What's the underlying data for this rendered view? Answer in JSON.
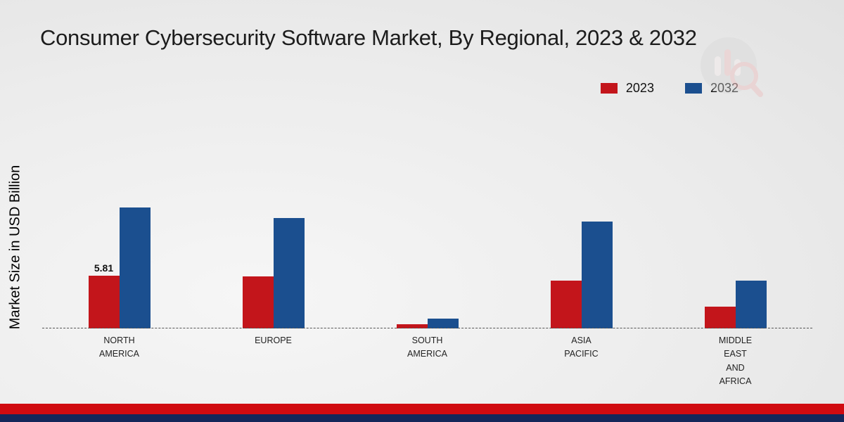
{
  "chart_data": {
    "type": "bar",
    "title": "Consumer Cybersecurity Software Market, By Regional, 2023 & 2032",
    "ylabel": "Market Size in USD Billion",
    "categories": [
      "NORTH\nAMERICA",
      "EUROPE",
      "SOUTH\nAMERICA",
      "ASIA\nPACIFIC",
      "MIDDLE\nEAST\nAND\nAFRICA"
    ],
    "series": [
      {
        "name": "2023",
        "color": "#c3151b",
        "values": [
          5.81,
          5.7,
          0.5,
          5.3,
          2.4
        ],
        "value_labels": [
          "5.81",
          "",
          "",
          "",
          ""
        ]
      },
      {
        "name": "2032",
        "color": "#1b4f8f",
        "values": [
          13.3,
          12.2,
          1.1,
          11.8,
          5.3
        ],
        "value_labels": [
          "",
          "",
          "",
          "",
          ""
        ]
      }
    ],
    "ylim": [
      0,
      14
    ],
    "grid": false,
    "legend_position": "top-right",
    "baseline_style": "dashed"
  },
  "footer": {
    "red_strip_color": "#d00b10",
    "navy_strip_color": "#14275a"
  },
  "watermark": {
    "name": "market-research-future-logo"
  }
}
